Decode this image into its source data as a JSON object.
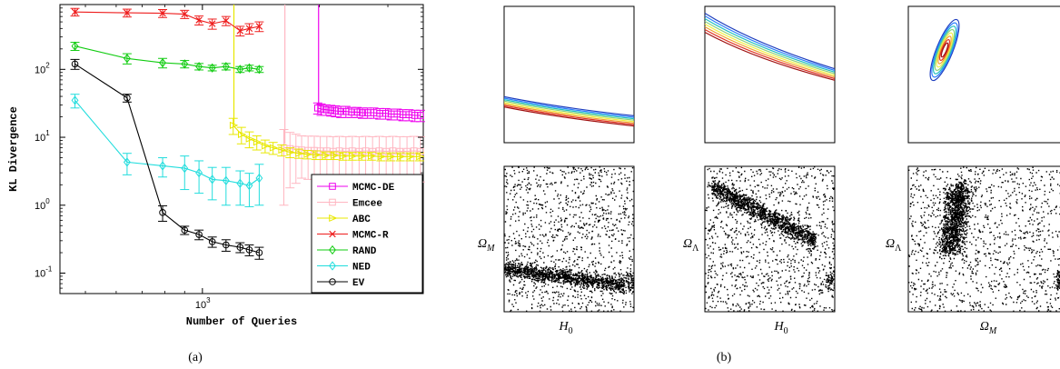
{
  "chart_data": [
    {
      "type": "line",
      "panel_label": "(a)",
      "xlabel": "Number of Queries",
      "ylabel": "KL Divergence",
      "xscale": "log",
      "yscale": "log",
      "xlim": [
        430,
        3700
      ],
      "ylim": [
        0.05,
        900
      ],
      "x_ticks": [
        {
          "value": 1000,
          "label": "10",
          "exp": "3"
        }
      ],
      "y_ticks": [
        {
          "value": 0.1,
          "label": "10",
          "exp": "-1"
        },
        {
          "value": 1,
          "label": "10",
          "exp": "0"
        },
        {
          "value": 10,
          "label": "10",
          "exp": "1"
        },
        {
          "value": 100,
          "label": "10",
          "exp": "2"
        }
      ],
      "legend_position": "bottom-right",
      "series": [
        {
          "name": "MCMC-DE",
          "color": "#ee00ee",
          "marker": "square",
          "x": [
            1980,
            2020,
            2080,
            2140,
            2200,
            2270,
            2340,
            2420,
            2500,
            2580,
            2660,
            2760,
            2860,
            2960,
            3060,
            3170,
            3280,
            3400,
            3520,
            3640
          ],
          "y": [
            27,
            26,
            25.5,
            25,
            24.5,
            24,
            24,
            23.5,
            23.5,
            23,
            23,
            23,
            22.5,
            22.5,
            22,
            22,
            21.5,
            21.5,
            21,
            21
          ],
          "err": [
            5,
            5,
            4.5,
            4.5,
            4.5,
            4.5,
            4.5,
            4,
            4,
            4,
            4,
            4,
            4,
            4,
            4,
            4,
            4,
            4,
            4,
            4
          ],
          "spike": {
            "x": 1990,
            "from": 30,
            "to": 900
          }
        },
        {
          "name": "Emcee",
          "color": "#ffb6c1",
          "marker": "square",
          "x": [
            1620,
            1680,
            1740,
            1800,
            1870,
            1940,
            2010,
            2090,
            2170,
            2250,
            2340,
            2430,
            2530,
            2630,
            2740,
            2850,
            2970,
            3090,
            3220,
            3360,
            3500,
            3640
          ],
          "y": [
            7,
            6.8,
            6.6,
            6.5,
            6.4,
            6.4,
            6.3,
            6.3,
            6.2,
            6.3,
            6.2,
            6.3,
            6.2,
            6.3,
            6.2,
            6.3,
            6.2,
            6.3,
            6.2,
            6.2,
            6.3,
            6.2
          ],
          "err": [
            6,
            5,
            4.5,
            4,
            4,
            4,
            4,
            4,
            4,
            4,
            4,
            4,
            4,
            4,
            4,
            4,
            4,
            4,
            4,
            4,
            4,
            4
          ],
          "spike": {
            "x": 1630,
            "from": 8,
            "to": 900
          }
        },
        {
          "name": "ABC",
          "color": "#e8e800",
          "marker": "triangle-right",
          "x": [
            1200,
            1260,
            1320,
            1380,
            1450,
            1520,
            1600,
            1680,
            1770,
            1860,
            1960,
            2070,
            2180,
            2300,
            2430,
            2570,
            2720,
            2880,
            3050,
            3230,
            3420,
            3620
          ],
          "y": [
            15,
            11,
            9.5,
            8.5,
            7.5,
            7,
            6.5,
            6,
            5.8,
            5.6,
            5.5,
            5.4,
            5.4,
            5.3,
            5.3,
            5.3,
            5.3,
            5.2,
            5.2,
            5.2,
            5.2,
            5.2
          ],
          "err": [
            4,
            3,
            2.5,
            2,
            1.6,
            1.4,
            1.2,
            1,
            0.9,
            0.8,
            0.8,
            0.7,
            0.7,
            0.7,
            0.7,
            0.7,
            0.7,
            0.7,
            0.7,
            0.7,
            0.7,
            0.7
          ],
          "spike": {
            "x": 1205,
            "from": 15,
            "to": 900
          }
        },
        {
          "name": "MCMC-R",
          "color": "#ee1c1c",
          "marker": "x",
          "x": [
            470,
            640,
            790,
            900,
            980,
            1060,
            1150,
            1250,
            1320,
            1400
          ],
          "y": [
            700,
            680,
            670,
            650,
            530,
            470,
            520,
            370,
            400,
            430
          ],
          "err": [
            90,
            90,
            90,
            90,
            80,
            80,
            80,
            60,
            70,
            70
          ]
        },
        {
          "name": "RAND",
          "color": "#11cc11",
          "marker": "diamond",
          "x": [
            470,
            640,
            790,
            900,
            980,
            1060,
            1150,
            1250,
            1320,
            1400
          ],
          "y": [
            220,
            145,
            125,
            120,
            110,
            105,
            110,
            100,
            105,
            100
          ],
          "err": [
            30,
            25,
            20,
            15,
            12,
            10,
            12,
            10,
            10,
            10
          ]
        },
        {
          "name": "NED",
          "color": "#22dddd",
          "marker": "diamond",
          "x": [
            470,
            640,
            790,
            900,
            980,
            1060,
            1150,
            1250,
            1320,
            1400
          ],
          "y": [
            35,
            4.3,
            3.8,
            3.5,
            3,
            2.4,
            2.3,
            2.1,
            1.95,
            2.5
          ],
          "err": [
            8,
            1.5,
            1.2,
            1.8,
            1.5,
            1.2,
            1.3,
            1.1,
            1,
            1.5
          ]
        },
        {
          "name": "EV",
          "color": "#000000",
          "marker": "circle",
          "x": [
            470,
            640,
            790,
            900,
            980,
            1060,
            1150,
            1250,
            1320,
            1400
          ],
          "y": [
            120,
            38,
            0.78,
            0.43,
            0.37,
            0.29,
            0.26,
            0.24,
            0.22,
            0.2
          ],
          "err": [
            20,
            5,
            0.2,
            0.06,
            0.06,
            0.05,
            0.05,
            0.04,
            0.04,
            0.04
          ]
        }
      ]
    },
    {
      "type": "scatter",
      "panel_label": "(b)",
      "description": "2x3 grid: top row contour plots of posterior, bottom row dense scatter of query points",
      "columns": [
        {
          "xlabel": "H₀",
          "ylabel": "Ω",
          "ylabel_sub": "M",
          "xlabel_sub": "0"
        },
        {
          "xlabel": "H₀",
          "ylabel": "Ω",
          "ylabel_sub": "Λ",
          "xlabel_sub": "0"
        },
        {
          "xlabel": "Ω",
          "ylabel": "Ω",
          "ylabel_sub": "Λ",
          "xlabel_sub": "M"
        }
      ]
    }
  ],
  "labels": {
    "sub_a": "(a)",
    "sub_b": "(b)",
    "xlabel": "Number of Queries",
    "ylabel": "KL Divergence",
    "b_x1": "H",
    "b_x1_sub": "0",
    "b_x2": "H",
    "b_x2_sub": "0",
    "b_x3": "Ω",
    "b_x3_sub": "M",
    "b_y1": "Ω",
    "b_y1_sub": "M",
    "b_y2": "Ω",
    "b_y2_sub": "Λ",
    "b_y3": "Ω",
    "b_y3_sub": "Λ"
  },
  "colors": {
    "contour_levels": [
      "#1f3fbf",
      "#2a7fff",
      "#20c0c0",
      "#8ad27a",
      "#f0f040",
      "#f0a030",
      "#e03020",
      "#a01010"
    ]
  }
}
